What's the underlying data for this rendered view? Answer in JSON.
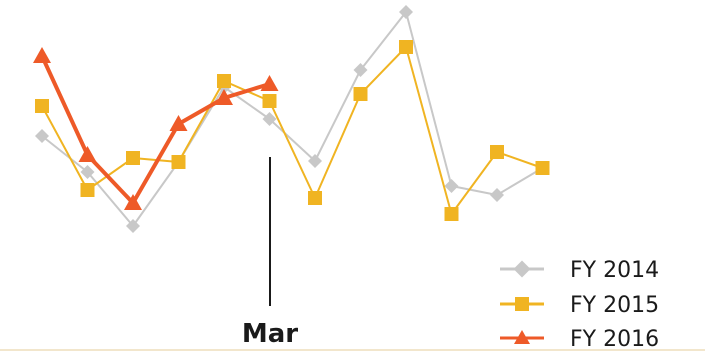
{
  "chart_data": {
    "type": "line",
    "annotation": {
      "label": "Mar",
      "x_index": 5
    },
    "series": [
      {
        "name": "FY 2014",
        "color": "#c8c8c8",
        "marker": "diamond",
        "values": [
          136,
          172,
          226,
          162,
          87,
          119,
          161,
          70,
          12,
          186,
          195,
          168
        ]
      },
      {
        "name": "FY 2015",
        "color": "#f0b422",
        "marker": "square",
        "values": [
          106,
          190,
          158,
          162,
          81,
          101,
          198,
          94,
          47,
          214,
          152,
          168
        ]
      },
      {
        "name": "FY 2016",
        "color": "#ee5a28",
        "marker": "triangle",
        "values": [
          56,
          155,
          203,
          124,
          98,
          84
        ]
      }
    ]
  }
}
